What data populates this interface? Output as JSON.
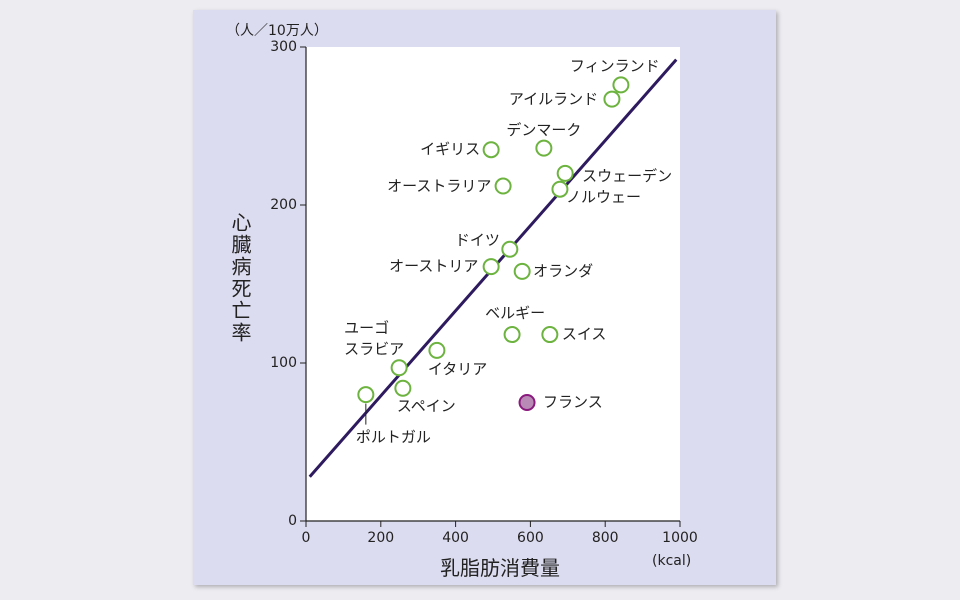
{
  "chart_data": {
    "type": "scatter",
    "y_unit_label": "（人／10万人）",
    "y_label": "心臓病死亡率",
    "x_label": "乳脂肪消費量",
    "x_unit_label": "(kcal)",
    "xlim": [
      0,
      1000
    ],
    "xticks": [
      0,
      200,
      400,
      600,
      800,
      1000
    ],
    "ylim": [
      0,
      300
    ],
    "yticks": [
      0,
      100,
      200,
      300
    ],
    "series": [
      {
        "color": "#6cb33f",
        "labels": [
          "フィンランド",
          "アイルランド",
          "デンマーク",
          "イギリス",
          "スウェーデン",
          "オーストラリア",
          "ノルウェー",
          "ドイツ",
          "オーストリア",
          "オランダ",
          "ベルギー",
          "スイス",
          "ユーゴ\nスラビア",
          "イタリア",
          "スペイン",
          "ポルトガル"
        ],
        "x": [
          842,
          818,
          636,
          495,
          693,
          527,
          679,
          545,
          495,
          578,
          551,
          652,
          249,
          350,
          259,
          160
        ],
        "values": [
          276,
          267,
          236,
          235,
          220,
          212,
          210,
          172,
          161,
          158,
          118,
          118,
          97,
          108,
          84,
          80
        ]
      },
      {
        "color": "#8b1a7e",
        "fill": "#b98ab5",
        "labels": [
          "フランス"
        ],
        "x": [
          591
        ],
        "values": [
          75
        ]
      }
    ],
    "fit_line": {
      "color": "#2e1a5e",
      "x": [
        10,
        990
      ],
      "y": [
        28,
        292
      ]
    }
  }
}
